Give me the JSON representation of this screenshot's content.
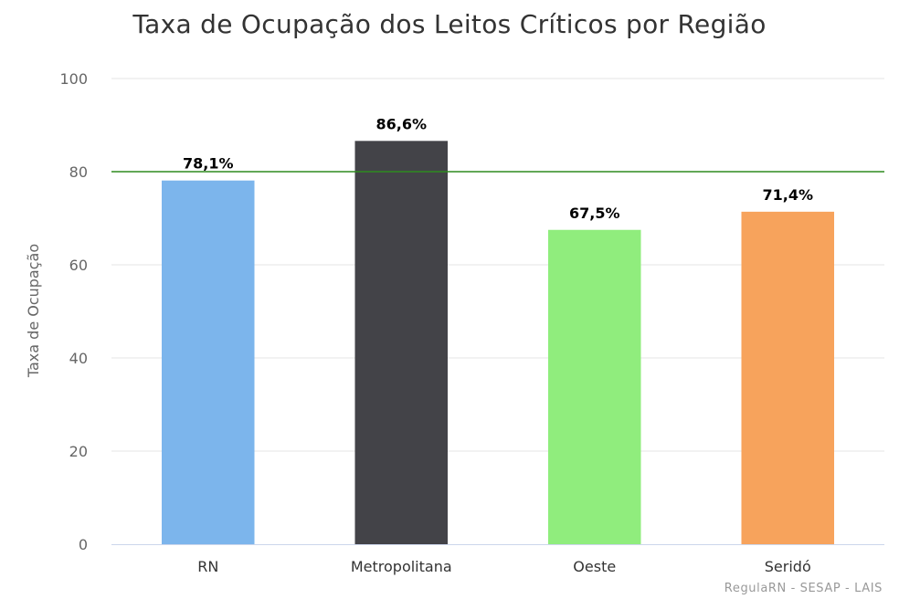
{
  "chart_data": {
    "type": "bar",
    "title": "Taxa de Ocupação dos Leitos Críticos por Região",
    "xlabel": "",
    "ylabel": "Taxa de Ocupação",
    "ylim": [
      0,
      100
    ],
    "yticks": [
      0,
      20,
      40,
      60,
      80,
      100
    ],
    "grid": true,
    "legend": "none",
    "categories": [
      "RN",
      "Metropolitana",
      "Oeste",
      "Seridó"
    ],
    "values": [
      78.1,
      86.6,
      67.5,
      71.4
    ],
    "data_labels": [
      "78,1%",
      "86,6%",
      "67,5%",
      "71,4%"
    ],
    "colors": [
      "#7cb5ec",
      "#434348",
      "#90ed7d",
      "#f7a35c"
    ],
    "reference_line": {
      "value": 80,
      "color": "#2e8b1f"
    },
    "gridline_color": "#e6e6e6",
    "axis_line_color": "#ccd6eb"
  },
  "credits": "RegulaRN - SESAP - LAIS"
}
